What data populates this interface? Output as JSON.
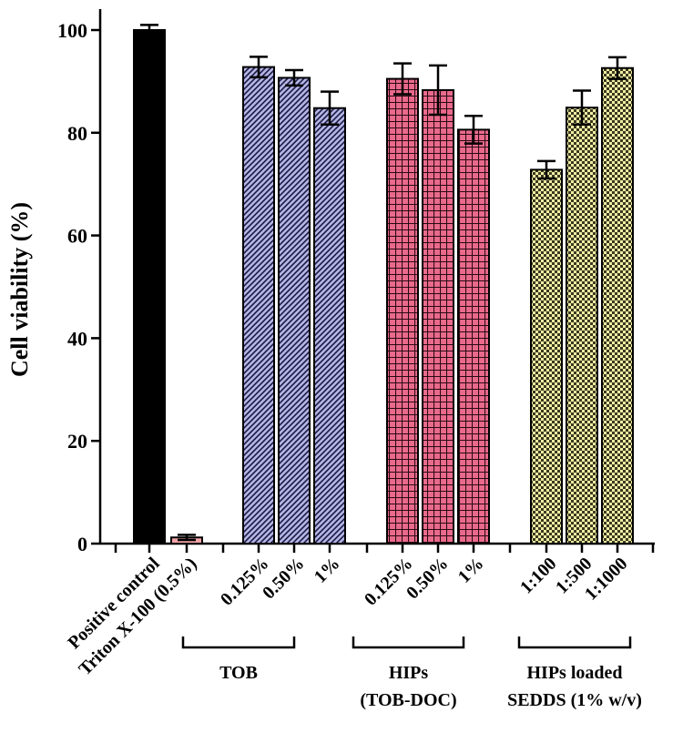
{
  "chart_data": {
    "type": "bar",
    "title": "",
    "xlabel": "",
    "ylabel": "Cell viability (%)",
    "ylim": [
      0,
      100
    ],
    "yticks": [
      "0",
      "20",
      "40",
      "60",
      "80",
      "100"
    ],
    "bars": [
      {
        "label": "Positive control",
        "value": 100,
        "error": 1,
        "fill": "#000000",
        "pattern": "solid"
      },
      {
        "label": "Triton X-100 (0.5%)",
        "value": 1.2,
        "error": 0.5,
        "fill": "#f4a3a8",
        "pattern": "solid"
      },
      {
        "label": "0.125%",
        "value": 92.8,
        "error": 2,
        "fill": "#b4b4e6",
        "pattern": "diagonal"
      },
      {
        "label": "0.50%",
        "value": 90.7,
        "error": 1.5,
        "fill": "#b4b4e6",
        "pattern": "diagonal"
      },
      {
        "label": "1%",
        "value": 84.8,
        "error": 3.2,
        "fill": "#b4b4e6",
        "pattern": "diagonal"
      },
      {
        "label": "0.125%",
        "value": 90.5,
        "error": 3,
        "fill": "#ea6a8c",
        "pattern": "grid"
      },
      {
        "label": "0.50%",
        "value": 88.3,
        "error": 4.8,
        "fill": "#ea6a8c",
        "pattern": "grid"
      },
      {
        "label": "1%",
        "value": 80.6,
        "error": 2.7,
        "fill": "#ea6a8c",
        "pattern": "grid"
      },
      {
        "label": "1:100",
        "value": 72.8,
        "error": 1.7,
        "fill": "#f1eda4",
        "pattern": "checker"
      },
      {
        "label": "1:500",
        "value": 84.9,
        "error": 3.3,
        "fill": "#f1eda4",
        "pattern": "checker"
      },
      {
        "label": "1:1000",
        "value": 92.6,
        "error": 2.1,
        "fill": "#f1eda4",
        "pattern": "checker"
      }
    ],
    "groups": [
      {
        "lines": [
          "TOB"
        ]
      },
      {
        "lines": [
          "HIPs",
          "(TOB-DOC)"
        ]
      },
      {
        "lines": [
          "HIPs loaded",
          "SEDDS (1% w/v)"
        ]
      }
    ]
  }
}
